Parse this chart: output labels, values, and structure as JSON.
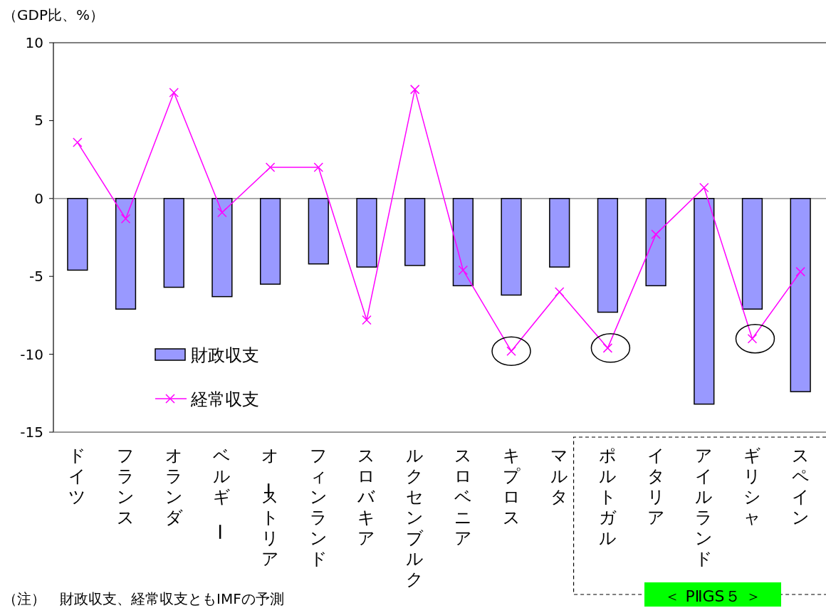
{
  "chart_data": {
    "type": "bar",
    "ylabel": "（GDP比、%）",
    "categories": [
      "ドイツ",
      "フランス",
      "オランダ",
      "ベルギー",
      "オーストリア",
      "フィンランド",
      "スロバキア",
      "ルクセンブルク",
      "スロベニア",
      "キプロス",
      "マルタ",
      "ポルトガル",
      "イタリア",
      "アイルランド",
      "ギリシャ",
      "スペイン"
    ],
    "series": [
      {
        "name": "財政収支",
        "color": "#9999ff",
        "values": [
          -4.6,
          -7.1,
          -5.7,
          -6.3,
          -5.5,
          -4.2,
          -4.4,
          -4.3,
          -5.6,
          -6.2,
          -4.4,
          -7.3,
          -5.6,
          -13.2,
          -7.1,
          -12.4
        ]
      },
      {
        "name": "経常収支",
        "type": "line",
        "color": "#ff00ff",
        "values": [
          3.6,
          -1.3,
          6.8,
          -0.9,
          2.0,
          2.0,
          -7.8,
          7.0,
          -4.6,
          -9.8,
          -6.0,
          -9.6,
          -2.3,
          0.7,
          -9.0,
          -4.7
        ]
      }
    ],
    "marker": "cross",
    "ylim": [
      -15,
      10
    ],
    "yticks": [
      -15,
      -10,
      -5,
      0,
      5,
      10
    ],
    "legend": "bottom left",
    "annotations": [
      {
        "text": "＜ PⅡGS５ ＞"
      },
      {
        "text": "（注）　財政収支、経常収支ともIMFの予測"
      }
    ]
  }
}
